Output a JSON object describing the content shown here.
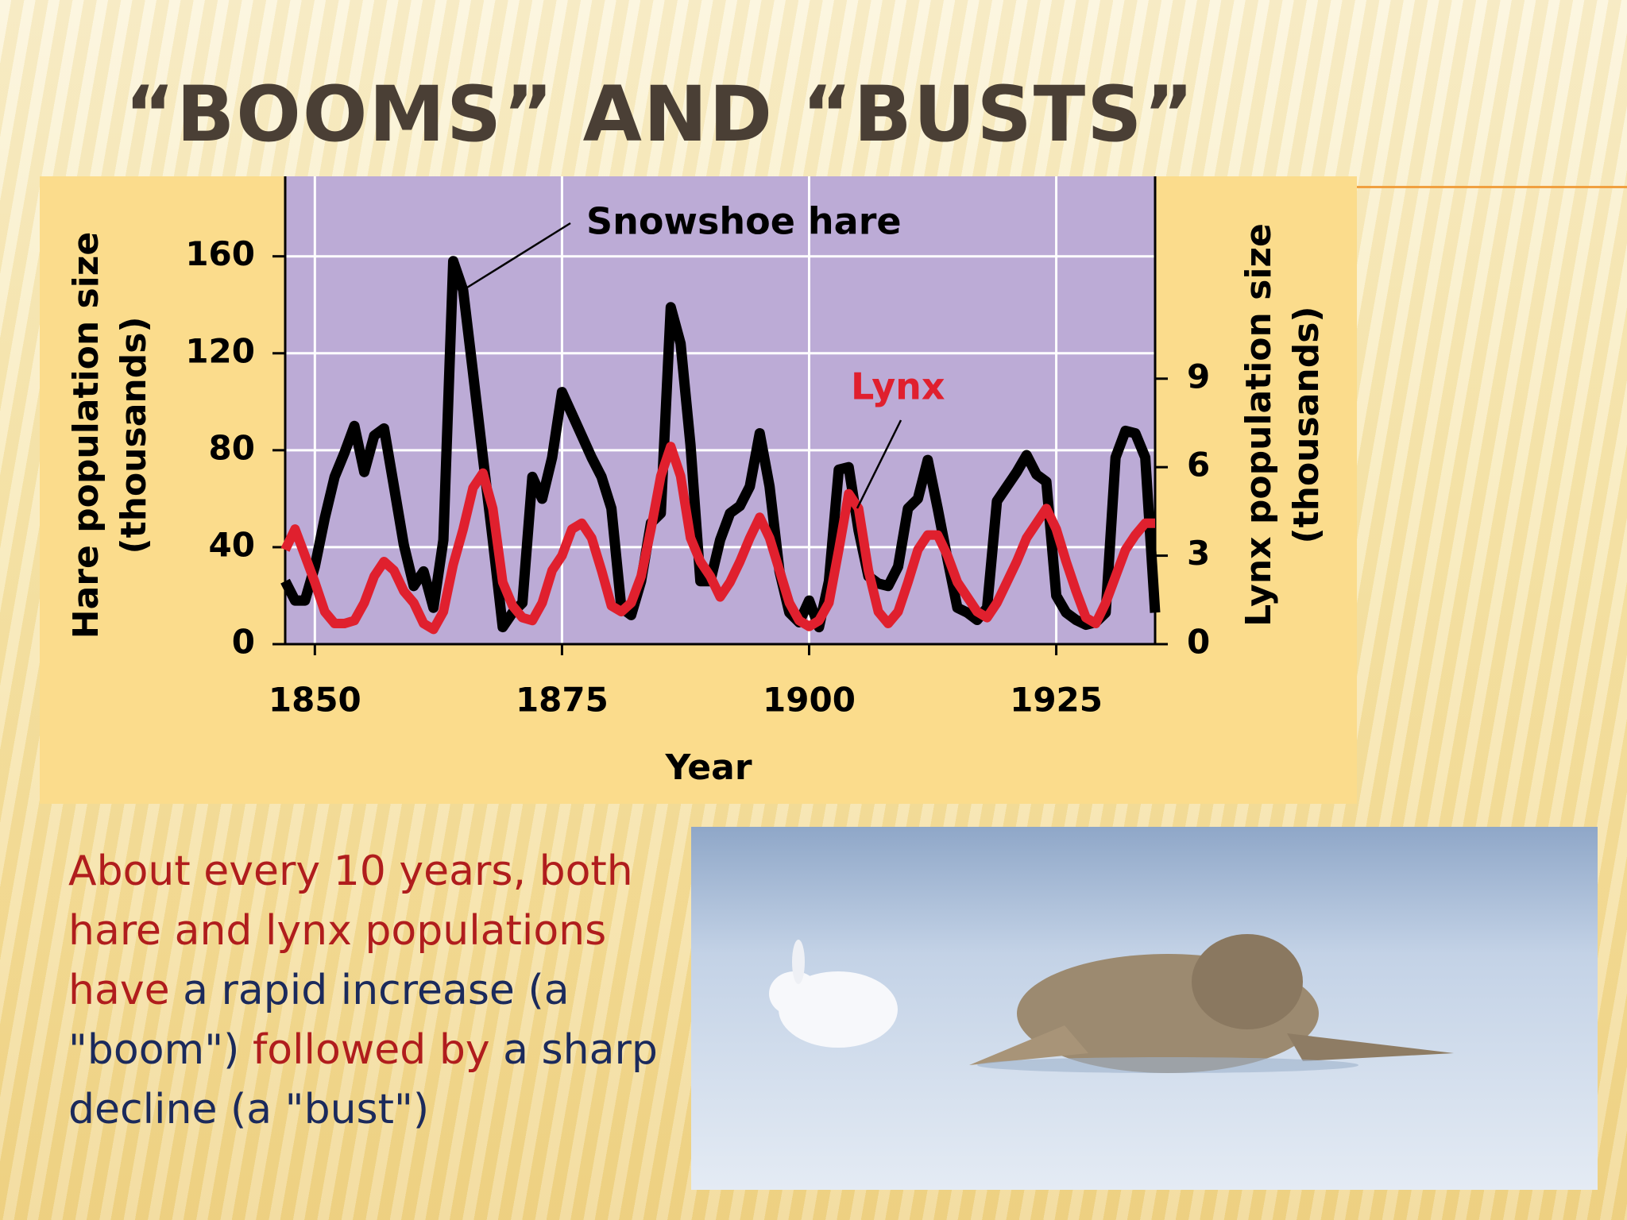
{
  "slide": {
    "title": "“BOOMS” AND “BUSTS”",
    "body": {
      "runs": [
        {
          "text": "About every 10 years, both hare and lynx populations have",
          "color": "#b01d1d"
        },
        {
          "text": " a rapid increase (a \"boom\")",
          "color": "#1b2a5c"
        },
        {
          "text": " followed by",
          "color": "#b01d1d"
        },
        {
          "text": " a sharp decline (a \"bust\")",
          "color": "#1b2a5c"
        }
      ]
    }
  },
  "chart_data": {
    "type": "line",
    "xlabel": "Year",
    "ylabel": [
      "Hare population size",
      "(thousands)"
    ],
    "y2label": [
      "Lynx population size",
      "(thousands)"
    ],
    "x": [
      1847,
      1848,
      1849,
      1850,
      1851,
      1852,
      1853,
      1854,
      1855,
      1856,
      1857,
      1858,
      1859,
      1860,
      1861,
      1862,
      1863,
      1864,
      1865,
      1866,
      1867,
      1868,
      1869,
      1870,
      1871,
      1872,
      1873,
      1874,
      1875,
      1876,
      1877,
      1878,
      1879,
      1880,
      1881,
      1882,
      1883,
      1884,
      1885,
      1886,
      1887,
      1888,
      1889,
      1890,
      1891,
      1892,
      1893,
      1894,
      1895,
      1896,
      1897,
      1898,
      1899,
      1900,
      1901,
      1902,
      1903,
      1904,
      1905,
      1906,
      1907,
      1908,
      1909,
      1910,
      1911,
      1912,
      1913,
      1914,
      1915,
      1916,
      1917,
      1918,
      1919,
      1920,
      1921,
      1922,
      1923,
      1924,
      1925,
      1926,
      1927,
      1928,
      1929,
      1930,
      1931,
      1932,
      1933,
      1934,
      1935
    ],
    "series": [
      {
        "name": "Snowshoe hare",
        "color": "#000000",
        "values": [
          26,
          18,
          18,
          32,
          52,
          69,
          79,
          90,
          71,
          86,
          89,
          65,
          41,
          24,
          30,
          15,
          43,
          158,
          146,
          112,
          77,
          43,
          7,
          13,
          17,
          69,
          60,
          77,
          104,
          95,
          86,
          77,
          69,
          56,
          15,
          12,
          26,
          50,
          54,
          139,
          124,
          82,
          26,
          26,
          43,
          54,
          57,
          65,
          87,
          65,
          30,
          13,
          9,
          18,
          7,
          26,
          72,
          73,
          47,
          28,
          25,
          24,
          32,
          56,
          60,
          76,
          56,
          35,
          15,
          13,
          10,
          15,
          59,
          65,
          71,
          78,
          70,
          67,
          20,
          13,
          10,
          8,
          9,
          13,
          77,
          88,
          87,
          77,
          13
        ]
      },
      {
        "name": "Lynx",
        "color": "#e0202e",
        "axis": "y2",
        "values": [
          3.2,
          3.9,
          3.0,
          2.1,
          1.1,
          0.7,
          0.7,
          0.8,
          1.4,
          2.3,
          2.8,
          2.5,
          1.8,
          1.4,
          0.7,
          0.5,
          1.1,
          2.7,
          3.9,
          5.3,
          5.8,
          4.6,
          2.1,
          1.3,
          0.9,
          0.8,
          1.4,
          2.5,
          3.0,
          3.9,
          4.1,
          3.6,
          2.5,
          1.3,
          1.1,
          1.4,
          2.3,
          3.9,
          5.7,
          6.7,
          5.7,
          3.6,
          2.8,
          2.3,
          1.6,
          2.1,
          2.8,
          3.6,
          4.3,
          3.6,
          2.5,
          1.4,
          0.8,
          0.6,
          0.8,
          1.4,
          3.2,
          5.1,
          4.6,
          2.5,
          1.1,
          0.7,
          1.1,
          2.1,
          3.2,
          3.7,
          3.7,
          3.0,
          2.1,
          1.6,
          1.1,
          0.9,
          1.4,
          2.1,
          2.8,
          3.6,
          4.1,
          4.6,
          3.9,
          2.8,
          1.8,
          0.9,
          0.7,
          1.4,
          2.3,
          3.2,
          3.7,
          4.1,
          4.1
        ]
      }
    ],
    "xlim": [
      1847,
      1935
    ],
    "xticks": [
      1850,
      1875,
      1900,
      1925
    ],
    "ylim": [
      0,
      193
    ],
    "yticks": [
      0,
      40,
      80,
      120,
      160
    ],
    "y2lim": [
      0,
      15.86
    ],
    "y2ticks": [
      0,
      3,
      6,
      9
    ],
    "grid": true
  }
}
